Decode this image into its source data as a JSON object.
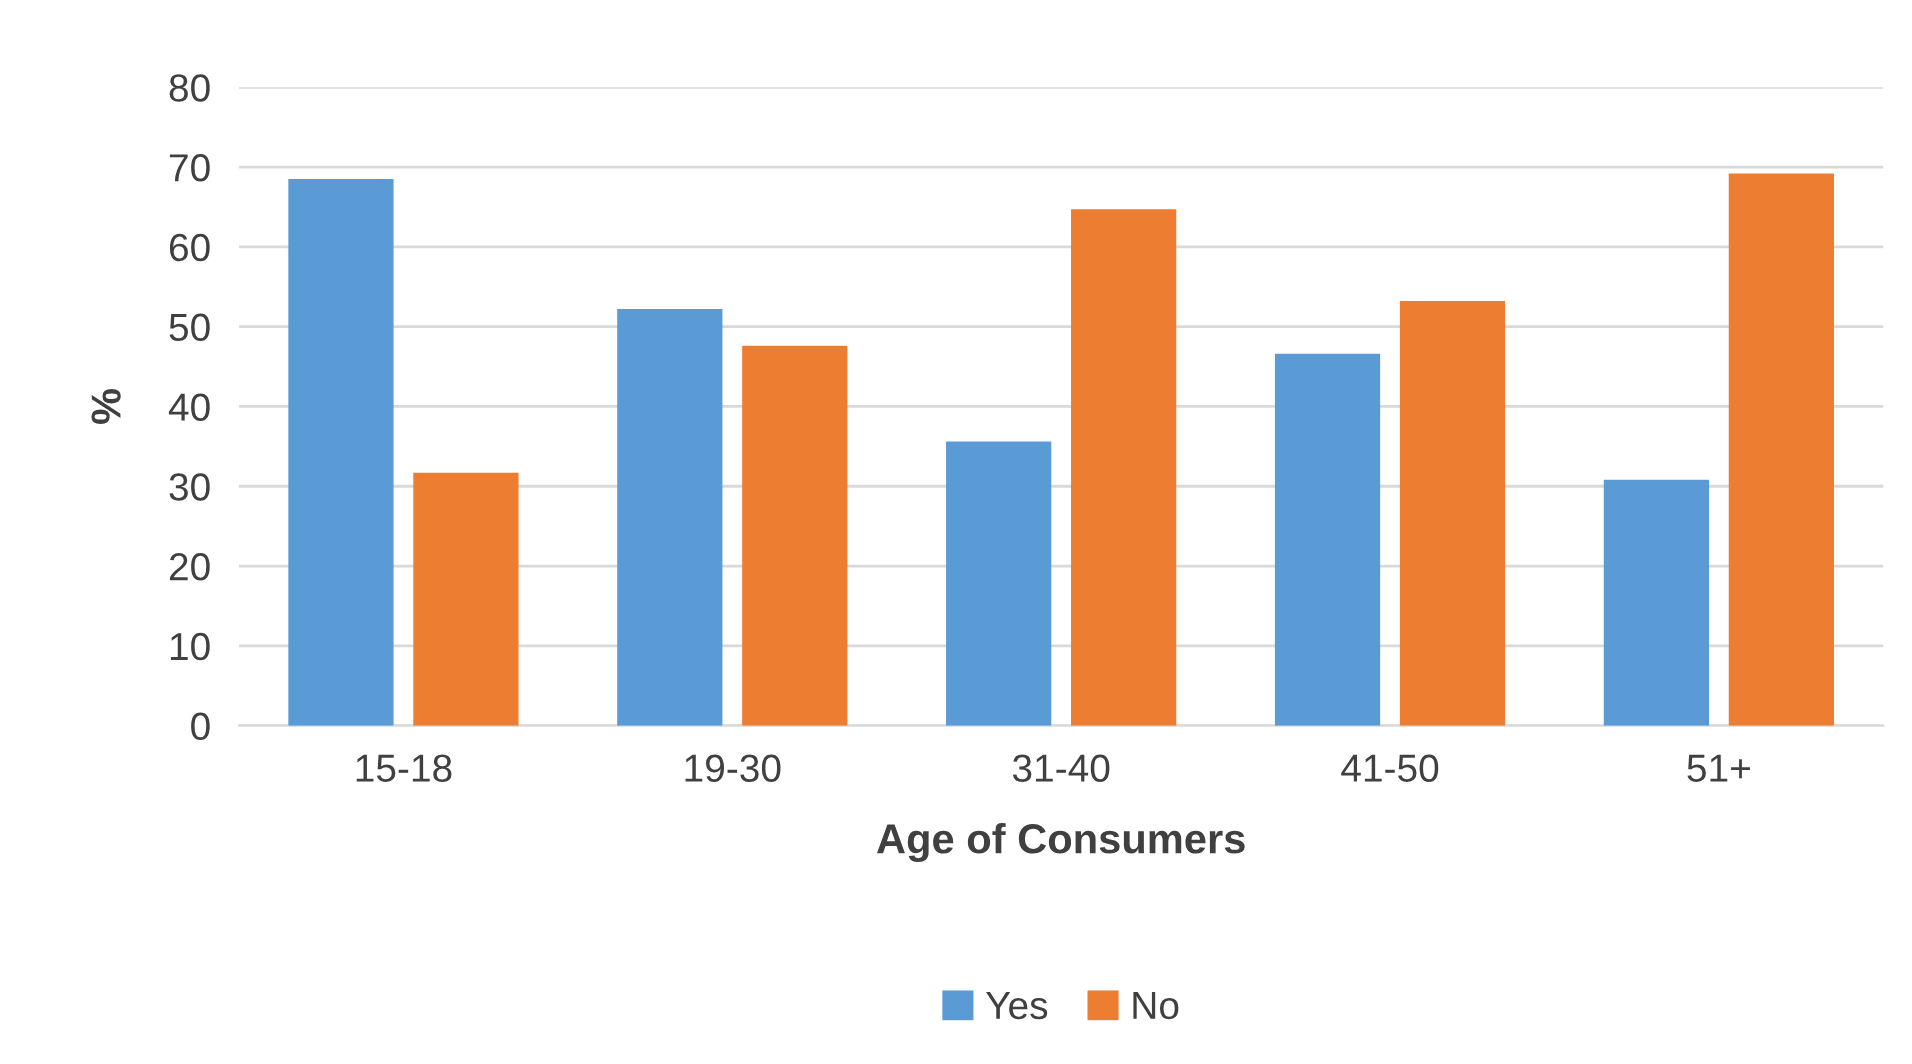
{
  "chart_data": {
    "type": "bar",
    "xlabel": "Age of Consumers",
    "ylabel": "%",
    "categories": [
      "15-18",
      "19-30",
      "31-40",
      "41-50",
      "51+"
    ],
    "series": [
      {
        "name": "Yes",
        "color": "#5b9bd5",
        "values": [
          68.5,
          52.2,
          35.6,
          46.6,
          30.8
        ]
      },
      {
        "name": "No",
        "color": "#ed7d31",
        "values": [
          31.7,
          47.6,
          64.7,
          53.2,
          69.2
        ]
      }
    ],
    "ylim": [
      0,
      80
    ],
    "yticks": [
      0,
      10,
      20,
      30,
      40,
      50,
      60,
      70,
      80
    ],
    "grid": "y",
    "legend": "bottom"
  }
}
